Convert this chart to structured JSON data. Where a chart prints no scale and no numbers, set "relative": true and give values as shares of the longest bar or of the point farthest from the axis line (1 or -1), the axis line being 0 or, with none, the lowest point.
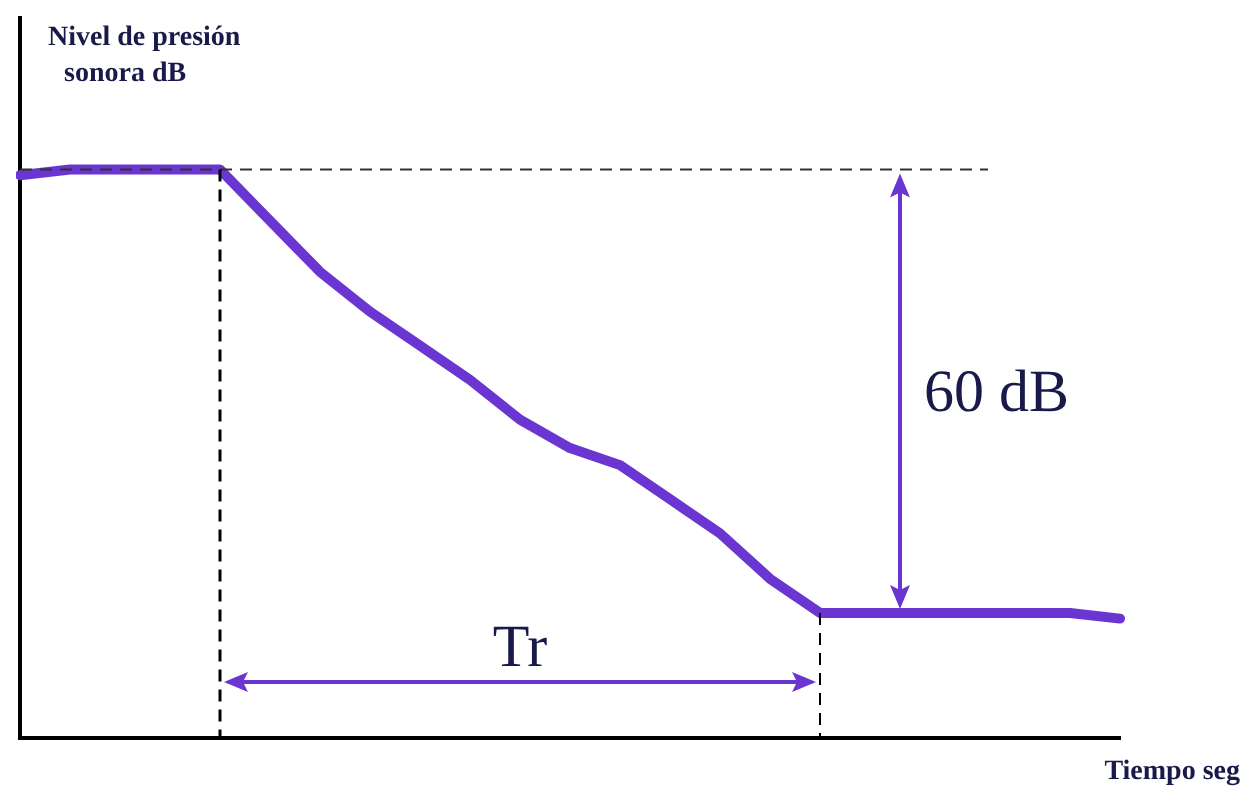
{
  "chart_data": {
    "type": "line",
    "relative": true,
    "xlabel": "Tiempo seg",
    "ylabel": "Nivel de presión sonora dB",
    "categories": [
      null,
      null,
      null,
      null,
      null,
      null,
      null,
      null,
      null,
      null,
      null,
      null,
      null,
      null,
      null,
      null,
      null,
      null,
      null,
      null,
      null,
      null,
      null
    ],
    "series": [
      {
        "color": "#6a35d0",
        "values": [
          0.99,
          1,
          1,
          1,
          1,
          0.91,
          0.82,
          0.75,
          0.69,
          0.63,
          0.56,
          0.51,
          0.48,
          0.42,
          0.36,
          0.28,
          0.22,
          0.22,
          0.22,
          0.22,
          0.22,
          0.22,
          0.21
        ]
      }
    ],
    "ref_lines": [
      {
        "axis": "y",
        "value": 1,
        "color": "#333333",
        "line_style": "dashed"
      }
    ],
    "annotations": [
      "60 dB",
      "Tr"
    ],
    "grid": false,
    "legend": false,
    "marker": "none",
    "line_style": "solid"
  }
}
